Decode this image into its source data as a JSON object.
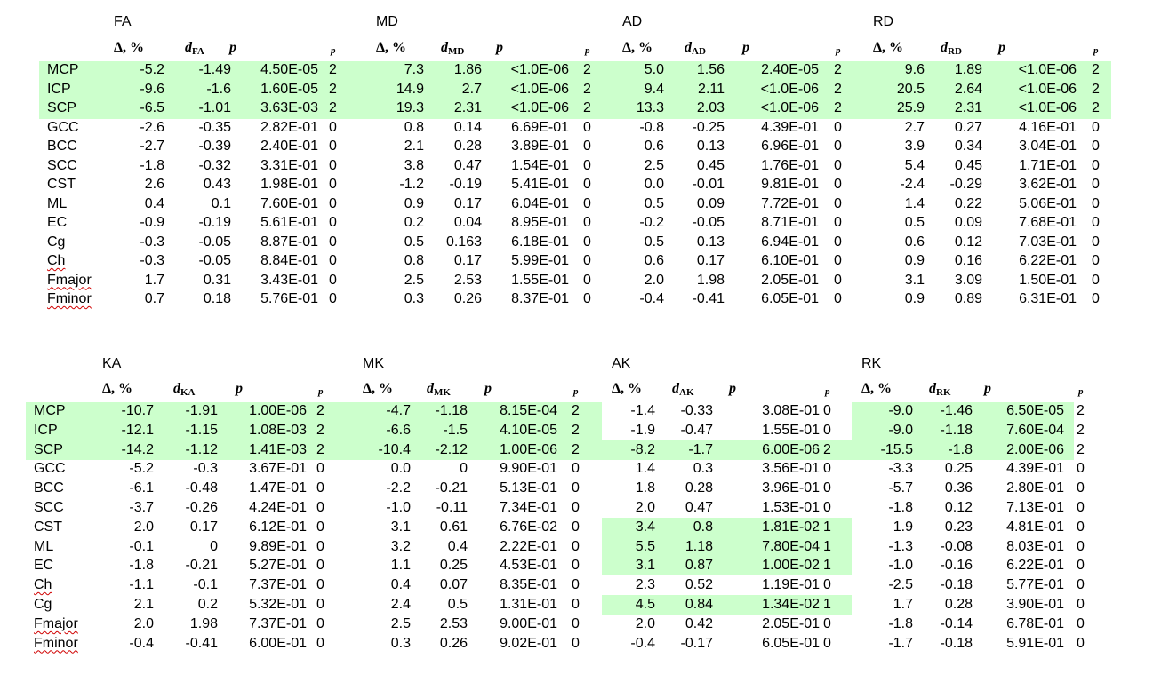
{
  "tables": [
    {
      "id": "top",
      "metrics": [
        "FA",
        "MD",
        "AD",
        "RD"
      ],
      "d_subscripts": [
        "FA",
        "MD",
        "AD",
        "RD"
      ],
      "col_headers": {
        "delta": "Δ, %",
        "d": "d",
        "p": "p",
        "pt": "p"
      },
      "rows": [
        {
          "label": "MCP",
          "cells": [
            [
              "-5.2",
              "-1.49",
              "4.50E-05",
              "2"
            ],
            [
              "7.3",
              "1.86",
              "<1.0E-06",
              "2"
            ],
            [
              "5.0",
              "1.56",
              "2.40E-05",
              "2"
            ],
            [
              "9.6",
              "1.89",
              "<1.0E-06",
              "2"
            ]
          ]
        },
        {
          "label": "ICP",
          "cells": [
            [
              "-9.6",
              "-1.6",
              "1.60E-05",
              "2"
            ],
            [
              "14.9",
              "2.7",
              "<1.0E-06",
              "2"
            ],
            [
              "9.4",
              "2.11",
              "<1.0E-06",
              "2"
            ],
            [
              "20.5",
              "2.64",
              "<1.0E-06",
              "2"
            ]
          ]
        },
        {
          "label": "SCP",
          "cells": [
            [
              "-6.5",
              "-1.01",
              "3.63E-03",
              "2"
            ],
            [
              "19.3",
              "2.31",
              "<1.0E-06",
              "2"
            ],
            [
              "13.3",
              "2.03",
              "<1.0E-06",
              "2"
            ],
            [
              "25.9",
              "2.31",
              "<1.0E-06",
              "2"
            ]
          ]
        },
        {
          "label": "GCC",
          "cells": [
            [
              "-2.6",
              "-0.35",
              "2.82E-01",
              "0"
            ],
            [
              "0.8",
              "0.14",
              "6.69E-01",
              "0"
            ],
            [
              "-0.8",
              "-0.25",
              "4.39E-01",
              "0"
            ],
            [
              "2.7",
              "0.27",
              "4.16E-01",
              "0"
            ]
          ]
        },
        {
          "label": "BCC",
          "cells": [
            [
              "-2.7",
              "-0.39",
              "2.40E-01",
              "0"
            ],
            [
              "2.1",
              "0.28",
              "3.89E-01",
              "0"
            ],
            [
              "0.6",
              "0.13",
              "6.96E-01",
              "0"
            ],
            [
              "3.9",
              "0.34",
              "3.04E-01",
              "0"
            ]
          ]
        },
        {
          "label": "SCC",
          "cells": [
            [
              "-1.8",
              "-0.32",
              "3.31E-01",
              "0"
            ],
            [
              "3.8",
              "0.47",
              "1.54E-01",
              "0"
            ],
            [
              "2.5",
              "0.45",
              "1.76E-01",
              "0"
            ],
            [
              "5.4",
              "0.45",
              "1.71E-01",
              "0"
            ]
          ]
        },
        {
          "label": "CST",
          "cells": [
            [
              "2.6",
              "0.43",
              "1.98E-01",
              "0"
            ],
            [
              "-1.2",
              "-0.19",
              "5.41E-01",
              "0"
            ],
            [
              "0.0",
              "-0.01",
              "9.81E-01",
              "0"
            ],
            [
              "-2.4",
              "-0.29",
              "3.62E-01",
              "0"
            ]
          ]
        },
        {
          "label": "ML",
          "cells": [
            [
              "0.4",
              "0.1",
              "7.60E-01",
              "0"
            ],
            [
              "0.9",
              "0.17",
              "6.04E-01",
              "0"
            ],
            [
              "0.5",
              "0.09",
              "7.72E-01",
              "0"
            ],
            [
              "1.4",
              "0.22",
              "5.06E-01",
              "0"
            ]
          ]
        },
        {
          "label": "EC",
          "cells": [
            [
              "-0.9",
              "-0.19",
              "5.61E-01",
              "0"
            ],
            [
              "0.2",
              "0.04",
              "8.95E-01",
              "0"
            ],
            [
              "-0.2",
              "-0.05",
              "8.71E-01",
              "0"
            ],
            [
              "0.5",
              "0.09",
              "7.68E-01",
              "0"
            ]
          ]
        },
        {
          "label": "Cg",
          "cells": [
            [
              "-0.3",
              "-0.05",
              "8.87E-01",
              "0"
            ],
            [
              "0.5",
              "0.163",
              "6.18E-01",
              "0"
            ],
            [
              "0.5",
              "0.13",
              "6.94E-01",
              "0"
            ],
            [
              "0.6",
              "0.12",
              "7.03E-01",
              "0"
            ]
          ]
        },
        {
          "label": "Ch",
          "wavy": true,
          "cells": [
            [
              "-0.3",
              "-0.05",
              "8.84E-01",
              "0"
            ],
            [
              "0.8",
              "0.17",
              "5.99E-01",
              "0"
            ],
            [
              "0.6",
              "0.17",
              "6.10E-01",
              "0"
            ],
            [
              "0.9",
              "0.16",
              "6.22E-01",
              "0"
            ]
          ]
        },
        {
          "label": "Fmajor",
          "wavy": true,
          "cells": [
            [
              "1.7",
              "0.31",
              "3.43E-01",
              "0"
            ],
            [
              "2.5",
              "2.53",
              "1.55E-01",
              "0"
            ],
            [
              "2.0",
              "1.98",
              "2.05E-01",
              "0"
            ],
            [
              "3.1",
              "3.09",
              "1.50E-01",
              "0"
            ]
          ]
        },
        {
          "label": "Fminor",
          "wavy": true,
          "cells": [
            [
              "0.7",
              "0.18",
              "5.76E-01",
              "0"
            ],
            [
              "0.3",
              "0.26",
              "8.37E-01",
              "0"
            ],
            [
              "-0.4",
              "-0.41",
              "6.05E-01",
              "0"
            ],
            [
              "0.9",
              "0.89",
              "6.31E-01",
              "0"
            ]
          ]
        }
      ]
    },
    {
      "id": "bottom",
      "metrics": [
        "KA",
        "MK",
        "AK",
        "RK"
      ],
      "d_subscripts": [
        "KA",
        "MK",
        "AK",
        "RK"
      ],
      "col_headers": {
        "delta": "Δ, %",
        "d": "d",
        "p": "p",
        "pt": "p"
      },
      "rows": [
        {
          "label": "MCP",
          "cells": [
            [
              "-10.7",
              "-1.91",
              "1.00E-06",
              "2"
            ],
            [
              "-4.7",
              "-1.18",
              "8.15E-04",
              "2"
            ],
            [
              "-1.4",
              "-0.33",
              "3.08E-01",
              "0"
            ],
            [
              "-9.0",
              "-1.46",
              "6.50E-05",
              "2"
            ]
          ]
        },
        {
          "label": "ICP",
          "cells": [
            [
              "-12.1",
              "-1.15",
              "1.08E-03",
              "2"
            ],
            [
              "-6.6",
              "-1.5",
              "4.10E-05",
              "2"
            ],
            [
              "-1.9",
              "-0.47",
              "1.55E-01",
              "0"
            ],
            [
              "-9.0",
              "-1.18",
              "7.60E-04",
              "2"
            ]
          ]
        },
        {
          "label": "SCP",
          "cells": [
            [
              "-14.2",
              "-1.12",
              "1.41E-03",
              "2"
            ],
            [
              "-10.4",
              "-2.12",
              "1.00E-06",
              "2"
            ],
            [
              "-8.2",
              "-1.7",
              "6.00E-06",
              "2"
            ],
            [
              "-15.5",
              "-1.8",
              "2.00E-06",
              "2"
            ]
          ]
        },
        {
          "label": "GCC",
          "cells": [
            [
              "-5.2",
              "-0.3",
              "3.67E-01",
              "0"
            ],
            [
              "0.0",
              "0",
              "9.90E-01",
              "0"
            ],
            [
              "1.4",
              "0.3",
              "3.56E-01",
              "0"
            ],
            [
              "-3.3",
              "0.25",
              "4.39E-01",
              "0"
            ]
          ]
        },
        {
          "label": "BCC",
          "cells": [
            [
              "-6.1",
              "-0.48",
              "1.47E-01",
              "0"
            ],
            [
              "-2.2",
              "-0.21",
              "5.13E-01",
              "0"
            ],
            [
              "1.8",
              "0.28",
              "3.96E-01",
              "0"
            ],
            [
              "-5.7",
              "0.36",
              "2.80E-01",
              "0"
            ]
          ]
        },
        {
          "label": "SCC",
          "cells": [
            [
              "-3.7",
              "-0.26",
              "4.24E-01",
              "0"
            ],
            [
              "-1.0",
              "-0.11",
              "7.34E-01",
              "0"
            ],
            [
              "2.0",
              "0.47",
              "1.53E-01",
              "0"
            ],
            [
              "-1.8",
              "0.12",
              "7.13E-01",
              "0"
            ]
          ]
        },
        {
          "label": "CST",
          "cells": [
            [
              "2.0",
              "0.17",
              "6.12E-01",
              "0"
            ],
            [
              "3.1",
              "0.61",
              "6.76E-02",
              "0"
            ],
            [
              "3.4",
              "0.8",
              "1.81E-02",
              "1"
            ],
            [
              "1.9",
              "0.23",
              "4.81E-01",
              "0"
            ]
          ]
        },
        {
          "label": "ML",
          "cells": [
            [
              "-0.1",
              "0",
              "9.89E-01",
              "0"
            ],
            [
              "3.2",
              "0.4",
              "2.22E-01",
              "0"
            ],
            [
              "5.5",
              "1.18",
              "7.80E-04",
              "1"
            ],
            [
              "-1.3",
              "-0.08",
              "8.03E-01",
              "0"
            ]
          ]
        },
        {
          "label": "EC",
          "cells": [
            [
              "-1.8",
              "-0.21",
              "5.27E-01",
              "0"
            ],
            [
              "1.1",
              "0.25",
              "4.53E-01",
              "0"
            ],
            [
              "3.1",
              "0.87",
              "1.00E-02",
              "1"
            ],
            [
              "-1.0",
              "-0.16",
              "6.22E-01",
              "0"
            ]
          ]
        },
        {
          "label": "Ch",
          "wavy": true,
          "cells": [
            [
              "-1.1",
              "-0.1",
              "7.37E-01",
              "0"
            ],
            [
              "0.4",
              "0.07",
              "8.35E-01",
              "0"
            ],
            [
              "2.3",
              "0.52",
              "1.19E-01",
              "0"
            ],
            [
              "-2.5",
              "-0.18",
              "5.77E-01",
              "0"
            ]
          ]
        },
        {
          "label": "Cg",
          "cells": [
            [
              "2.1",
              "0.2",
              "5.32E-01",
              "0"
            ],
            [
              "2.4",
              "0.5",
              "1.31E-01",
              "0"
            ],
            [
              "4.5",
              "0.84",
              "1.34E-02",
              "1"
            ],
            [
              "1.7",
              "0.28",
              "3.90E-01",
              "0"
            ]
          ]
        },
        {
          "label": "Fmajor",
          "wavy": true,
          "cells": [
            [
              "2.0",
              "1.98",
              "7.37E-01",
              "0"
            ],
            [
              "2.5",
              "2.53",
              "9.00E-01",
              "0"
            ],
            [
              "2.0",
              "0.42",
              "2.05E-01",
              "0"
            ],
            [
              "-1.8",
              "-0.14",
              "6.78E-01",
              "0"
            ]
          ]
        },
        {
          "label": "Fminor",
          "wavy": true,
          "cells": [
            [
              "-0.4",
              "-0.41",
              "6.00E-01",
              "0"
            ],
            [
              "0.3",
              "0.26",
              "9.02E-01",
              "0"
            ],
            [
              "-0.4",
              "-0.17",
              "6.05E-01",
              "0"
            ],
            [
              "-1.7",
              "-0.18",
              "5.91E-01",
              "0"
            ]
          ]
        }
      ]
    }
  ],
  "colors": {
    "highlight": "#ccffcc",
    "text": "#000000"
  }
}
